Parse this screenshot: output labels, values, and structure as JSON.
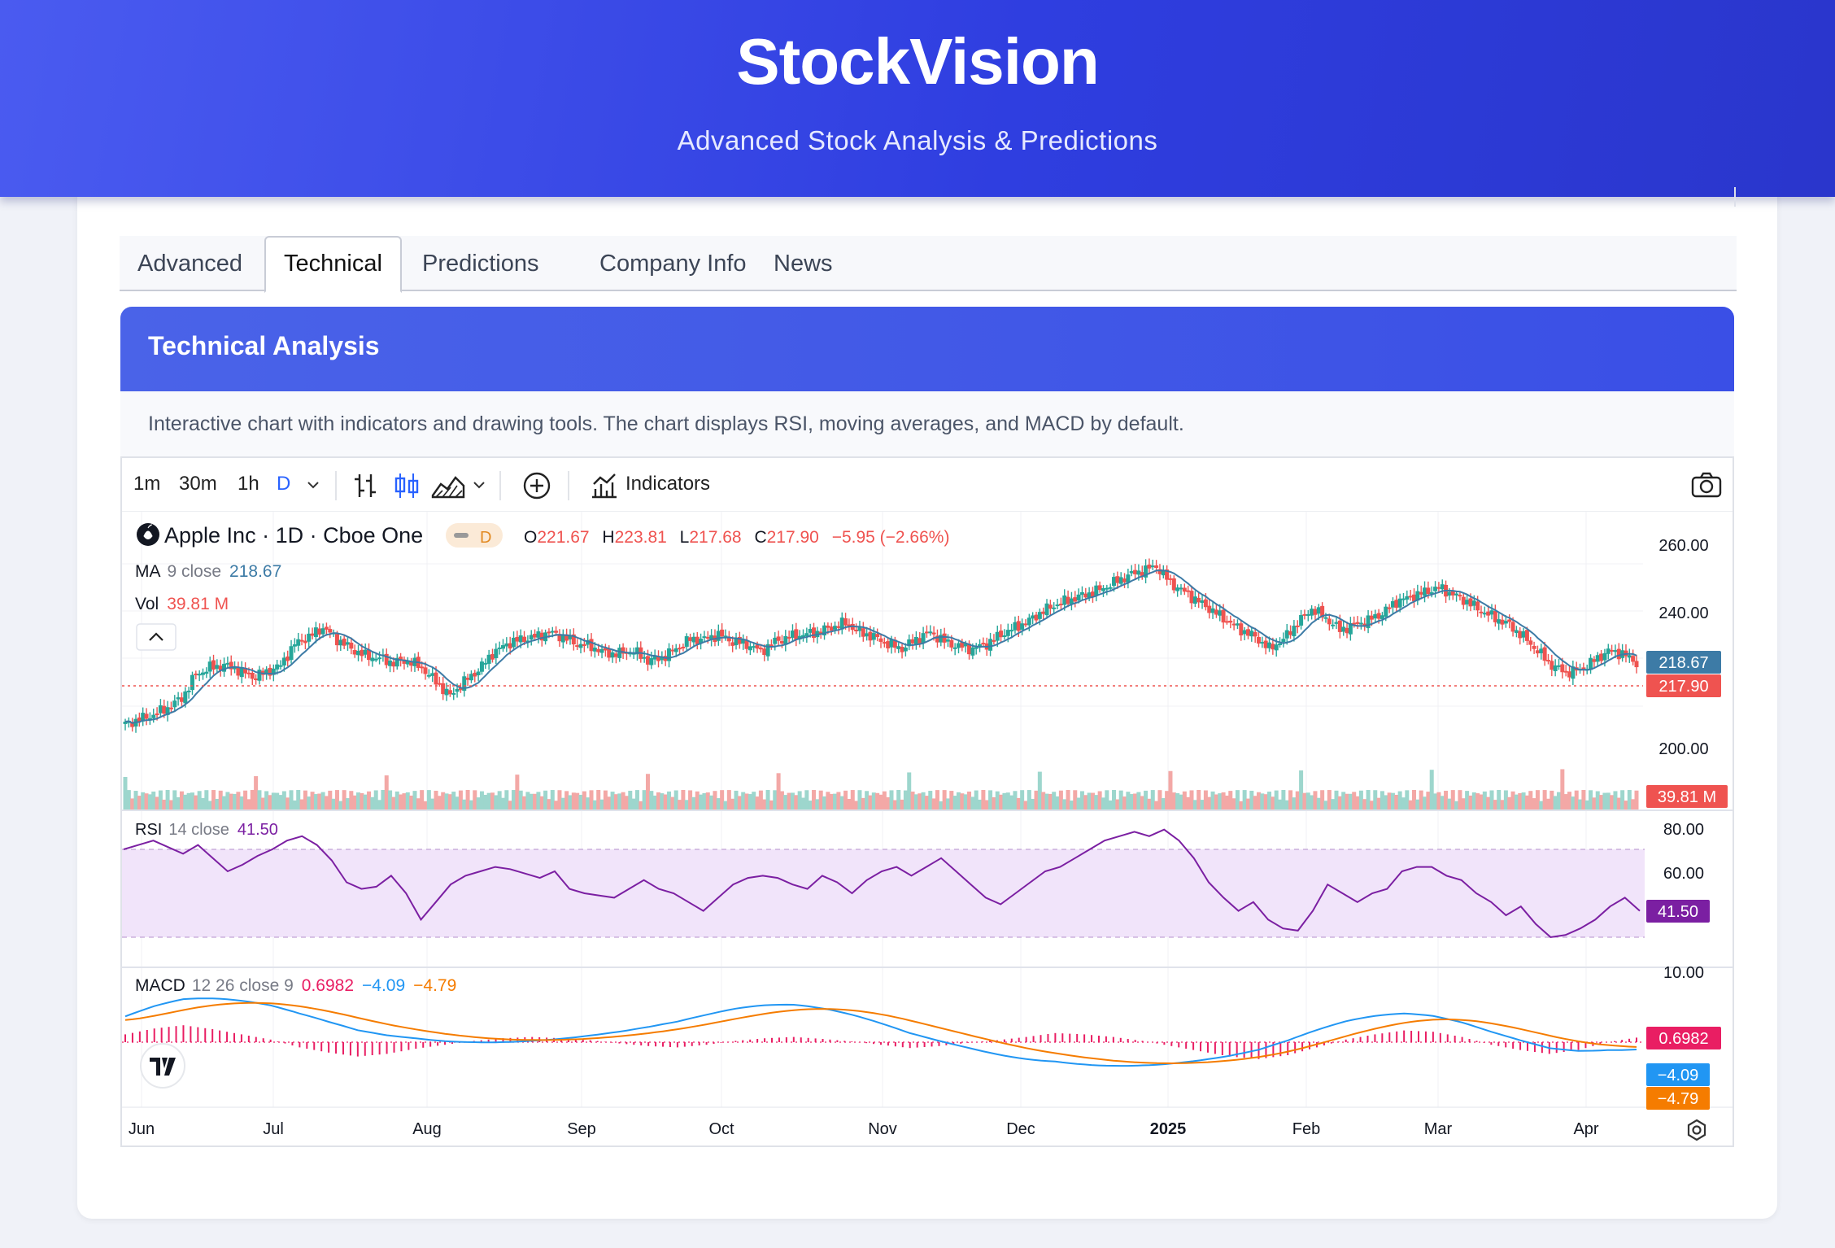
{
  "header": {
    "brand": "StockVision",
    "tagline": "Advanced Stock Analysis & Predictions"
  },
  "tabs": [
    "Advanced",
    "Technical",
    "Predictions",
    "Company Info",
    "News"
  ],
  "active_tab": "Technical",
  "panel": {
    "title": "Technical Analysis",
    "description": "Interactive chart with indicators and drawing tools. The chart displays RSI, moving averages, and MACD by default."
  },
  "toolbar": {
    "intervals": [
      "1m",
      "30m",
      "1h",
      "D"
    ],
    "selected_interval": "D",
    "indicators_label": "Indicators"
  },
  "legend": {
    "symbol": "Apple Inc · 1D · Cboe One",
    "badge": "D",
    "o_label": "O",
    "o": "221.67",
    "h_label": "H",
    "h": "223.81",
    "l_label": "L",
    "l": "217.68",
    "c_label": "C",
    "c": "217.90",
    "change": "−5.95 (−2.66%)",
    "ma_label": "MA",
    "ma_params": "9 close",
    "ma_value": "218.67",
    "vol_label": "Vol",
    "vol_value": "39.81 M",
    "rsi_label": "RSI",
    "rsi_params": "14 close",
    "rsi_value": "41.50",
    "macd_label": "MACD",
    "macd_params": "12 26 close 9",
    "macd_hist": "0.6982",
    "macd_line": "−4.09",
    "macd_signal": "−4.79"
  },
  "chart_data": {
    "type": "line",
    "x_labels": [
      "Jun",
      "Jul",
      "Aug",
      "Sep",
      "Oct",
      "Nov",
      "Dec",
      "2025",
      "Feb",
      "Mar",
      "Apr"
    ],
    "price_axis": [
      "260.00",
      "240.00",
      "200.00"
    ],
    "price_ylim": [
      190,
      265
    ],
    "price_close_approx": [
      192,
      194,
      196,
      199,
      203,
      213,
      216,
      217,
      215,
      212,
      214,
      217,
      226,
      229,
      233,
      228,
      224,
      221,
      220,
      218,
      219,
      216,
      210,
      204,
      210,
      215,
      222,
      226,
      228,
      229,
      231,
      229,
      226,
      225,
      222,
      222,
      223,
      219,
      220,
      224,
      228,
      228,
      230,
      227,
      226,
      223,
      227,
      229,
      230,
      231,
      233,
      235,
      231,
      229,
      226,
      224,
      228,
      231,
      227,
      225,
      224,
      226,
      230,
      233,
      236,
      240,
      243,
      245,
      247,
      249,
      252,
      255,
      257,
      259,
      252,
      248,
      244,
      240,
      236,
      232,
      229,
      224,
      228,
      235,
      241,
      237,
      232,
      234,
      236,
      239,
      244,
      246,
      248,
      250,
      247,
      244,
      240,
      237,
      234,
      229,
      223,
      217,
      214,
      215,
      219,
      223,
      222,
      218
    ],
    "price_axis_labels": {
      "ma": "218.67",
      "last": "217.90",
      "volume": "39.81 M"
    },
    "rsi_axis": [
      "80.00",
      "60.00",
      "10.00"
    ],
    "rsi_ylim": [
      0,
      90
    ],
    "rsi_band": [
      30,
      70
    ],
    "rsi_values_approx": [
      70,
      72,
      74,
      71,
      68,
      72,
      66,
      60,
      63,
      67,
      70,
      74,
      76,
      72,
      65,
      55,
      52,
      53,
      58,
      50,
      38,
      46,
      54,
      58,
      60,
      62,
      61,
      59,
      57,
      60,
      52,
      50,
      49,
      48,
      52,
      56,
      52,
      50,
      46,
      42,
      48,
      54,
      57,
      58,
      57,
      54,
      52,
      58,
      55,
      50,
      56,
      60,
      62,
      58,
      62,
      66,
      60,
      54,
      48,
      45,
      50,
      55,
      60,
      62,
      66,
      70,
      74,
      76,
      78,
      76,
      79,
      74,
      66,
      55,
      48,
      42,
      46,
      38,
      34,
      33,
      42,
      54,
      50,
      46,
      50,
      52,
      60,
      62,
      62,
      58,
      56,
      50,
      46,
      40,
      44,
      36,
      30,
      31,
      34,
      38,
      44,
      48,
      42
    ],
    "rsi_last": "41.50",
    "macd_hist_approx": [
      1.2,
      2.1,
      2.6,
      2.0,
      1.2,
      0.4,
      -0.8,
      -1.6,
      -2.2,
      -1.8,
      -1.0,
      -0.4,
      0.2,
      0.6,
      0.8,
      0.6,
      0.3,
      -0.2,
      -0.6,
      -0.8,
      -0.4,
      0.2,
      0.6,
      0.8,
      0.5,
      0.1,
      -0.4,
      -0.9,
      -0.6,
      -0.1,
      0.3,
      0.8,
      1.4,
      1.2,
      0.8,
      0.2,
      -0.6,
      -1.4,
      -2.2,
      -2.6,
      -2.0,
      -0.8,
      0.4,
      1.2,
      1.8,
      1.6,
      0.8,
      -0.4,
      -1.2,
      -1.8,
      -1.2,
      0.0,
      0.7
    ],
    "macd_values": {
      "hist": "0.6982",
      "macd": "−4.09",
      "signal": "−4.79"
    },
    "colors": {
      "up": "#26a69a",
      "down": "#ef5350",
      "ma": "#3d7ba6",
      "rsi": "#7b1fa2",
      "macd": "#2196f3",
      "signal": "#f57c00",
      "hist": "#e91e63"
    }
  }
}
